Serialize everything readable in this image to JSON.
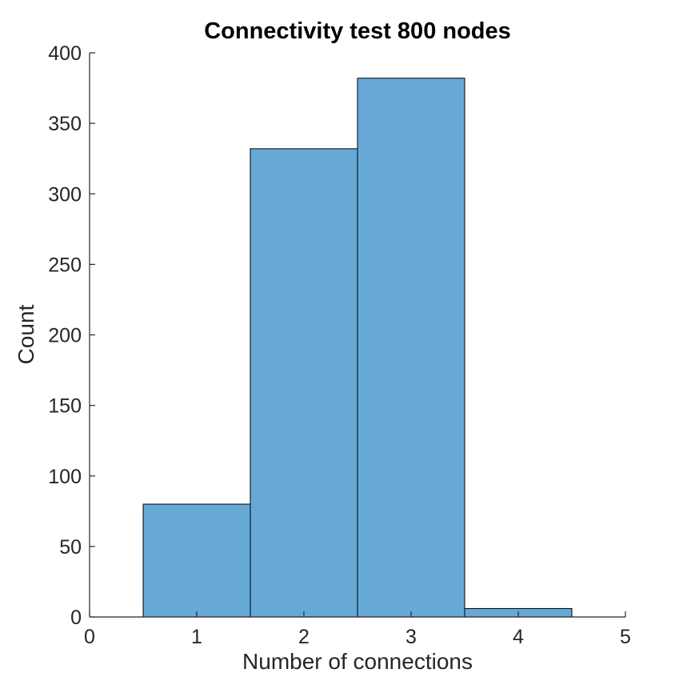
{
  "chart_data": {
    "type": "bar",
    "title": "Connectivity test 800 nodes",
    "xlabel": "Number of connections",
    "ylabel": "Count",
    "bin_centers": [
      1,
      2,
      3,
      4
    ],
    "bin_width": 1,
    "values": [
      80,
      332,
      382,
      6
    ],
    "xlim": [
      0,
      5
    ],
    "ylim": [
      0,
      400
    ],
    "xticks": [
      "0",
      "1",
      "2",
      "3",
      "4",
      "5"
    ],
    "yticks": [
      "0",
      "50",
      "100",
      "150",
      "200",
      "250",
      "300",
      "350",
      "400"
    ],
    "grid": false,
    "legend": "none",
    "colors": {
      "bar_fill": "#66a9d6",
      "bar_edge": "#000000",
      "axis": "#262626"
    }
  }
}
